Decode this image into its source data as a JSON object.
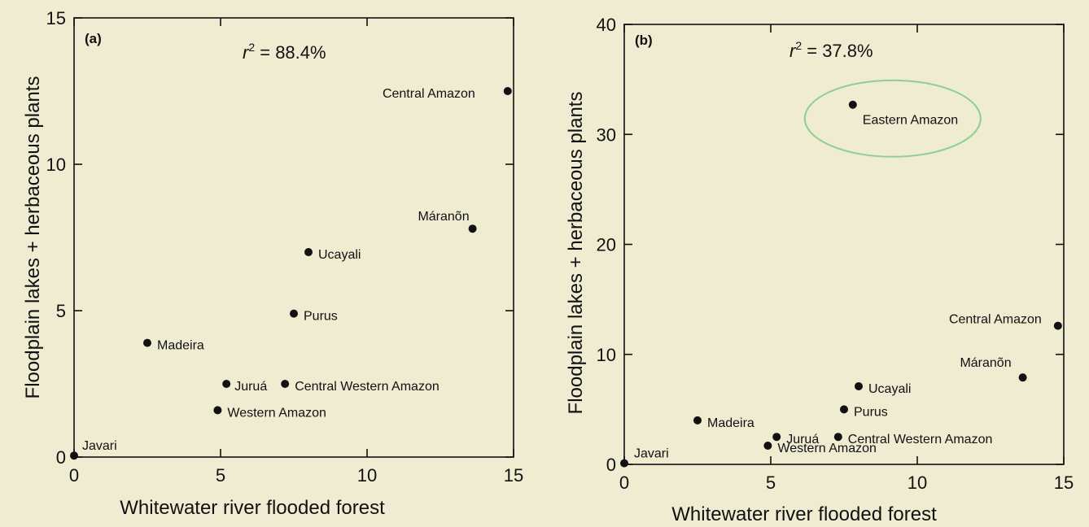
{
  "chart_data": [
    {
      "type": "scatter",
      "panel_label": "(a)",
      "annotation_prefix": "r",
      "annotation_sup": "2",
      "annotation_value": " = 88.4%",
      "xlabel": "Whitewater river flooded forest",
      "ylabel": "Floodplain lakes + herbaceous plants",
      "xlim": [
        0,
        15
      ],
      "ylim": [
        0,
        15
      ],
      "xticks": [
        0,
        5,
        10,
        15
      ],
      "yticks": [
        0,
        5,
        10,
        15
      ],
      "grid": false,
      "points": [
        {
          "label": "Javari",
          "x": 0,
          "y": 0.05
        },
        {
          "label": "Madeira",
          "x": 2.5,
          "y": 3.9
        },
        {
          "label": "Juruá",
          "x": 5.2,
          "y": 2.5
        },
        {
          "label": "Western Amazon",
          "x": 4.9,
          "y": 1.6
        },
        {
          "label": "Central Western Amazon",
          "x": 7.2,
          "y": 2.5
        },
        {
          "label": "Purus",
          "x": 7.5,
          "y": 4.9
        },
        {
          "label": "Ucayali",
          "x": 8.0,
          "y": 7.0
        },
        {
          "label": "Máranõn",
          "x": 13.6,
          "y": 7.8
        },
        {
          "label": "Central Amazon",
          "x": 14.8,
          "y": 12.5
        }
      ]
    },
    {
      "type": "scatter",
      "panel_label": "(b)",
      "annotation_prefix": "r",
      "annotation_sup": "2",
      "annotation_value": " = 37.8%",
      "xlabel": "Whitewater river flooded forest",
      "ylabel": "Floodplain lakes + herbaceous plants",
      "xlim": [
        0,
        15
      ],
      "ylim": [
        0,
        40
      ],
      "xticks": [
        0,
        5,
        10,
        15
      ],
      "yticks": [
        0,
        10,
        20,
        30,
        40
      ],
      "grid": false,
      "highlight_color": "#8fcf8f",
      "points": [
        {
          "label": "Javari",
          "x": 0,
          "y": 0.1
        },
        {
          "label": "Madeira",
          "x": 2.5,
          "y": 4.0
        },
        {
          "label": "Juruá",
          "x": 5.2,
          "y": 2.5
        },
        {
          "label": "Western Amazon",
          "x": 4.9,
          "y": 1.7
        },
        {
          "label": "Central Western Amazon",
          "x": 7.3,
          "y": 2.5
        },
        {
          "label": "Purus",
          "x": 7.5,
          "y": 5.0
        },
        {
          "label": "Ucayali",
          "x": 8.0,
          "y": 7.1
        },
        {
          "label": "Máranõn",
          "x": 13.6,
          "y": 7.9
        },
        {
          "label": "Central Amazon",
          "x": 14.8,
          "y": 12.6
        },
        {
          "label": "Eastern Amazon",
          "x": 7.8,
          "y": 32.7,
          "highlighted": true
        }
      ]
    }
  ]
}
